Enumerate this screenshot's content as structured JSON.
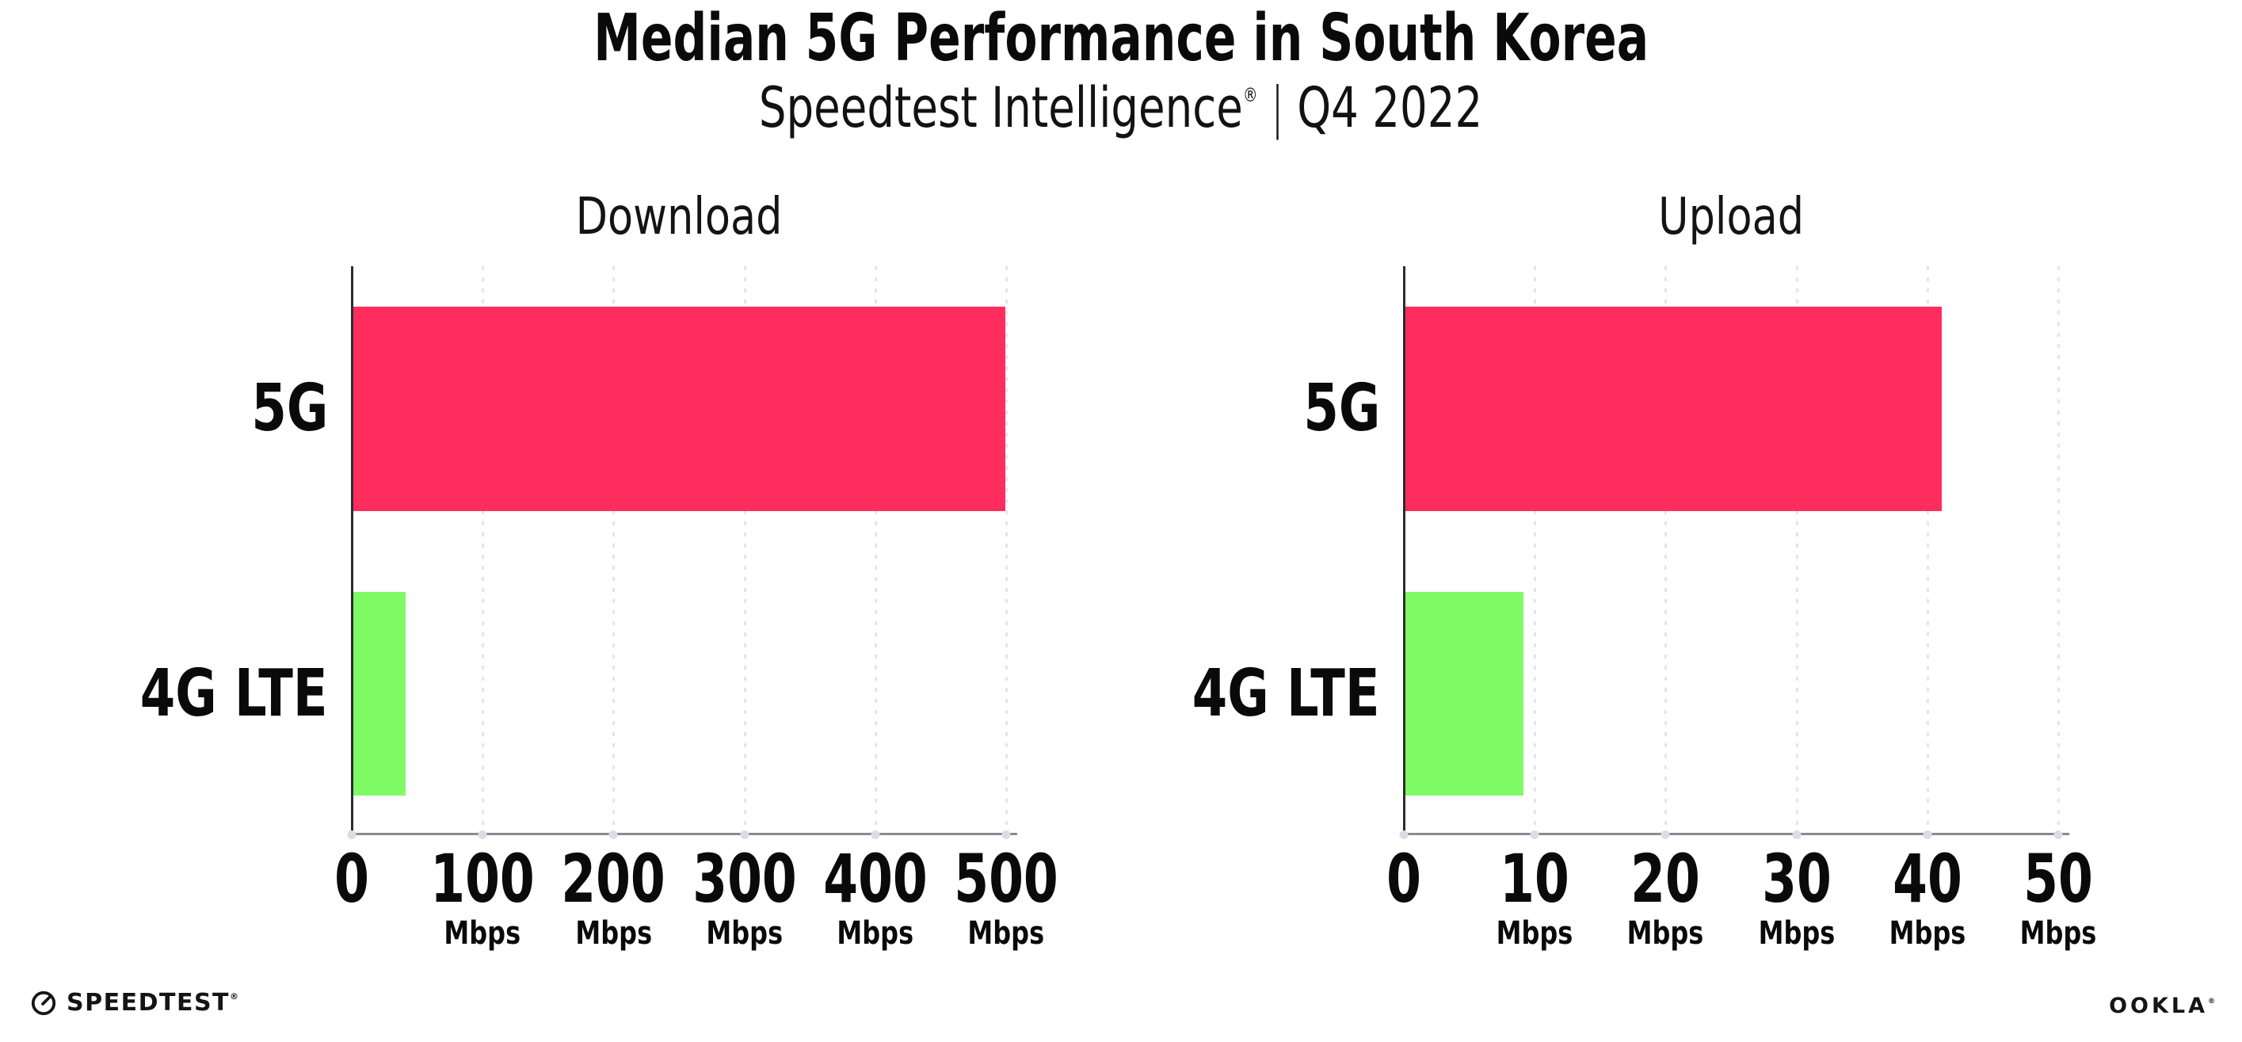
{
  "header": {
    "title": "Median 5G Performance in South Korea",
    "subtitle_product": "Speedtest Intelligence",
    "subtitle_registered": "®",
    "subtitle_separator": "|",
    "subtitle_period": "Q4 2022"
  },
  "footer": {
    "speedtest_label": "SPEEDTEST",
    "speedtest_mark": "®",
    "speedtest_icon": "speedtest-gauge-icon",
    "ookla_label": "OOKLA",
    "ookla_mark": "®"
  },
  "colors": {
    "bar_5g": "#FF2D5E",
    "bar_4g_lte": "#80FB66",
    "spine": "#2C2C31",
    "x_axis_line": "#8A8A90",
    "gridline_dots": "#E4E4EE",
    "tick_dots": "#DCDCE6",
    "text": "#0A0A0B"
  },
  "chart_data": [
    {
      "type": "bar",
      "orientation": "horizontal",
      "title": "Download",
      "categories": [
        "5G",
        "4G LTE"
      ],
      "values": [
        498,
        40
      ],
      "unit": "Mbps",
      "xlim": [
        0,
        500
      ],
      "x_ticks": [
        0,
        100,
        200,
        300,
        400,
        500
      ],
      "tick_unit_label": "Mbps",
      "bar_colors": [
        "#FF2D5E",
        "#80FB66"
      ],
      "grid": "vertical-dotted",
      "legend": "none"
    },
    {
      "type": "bar",
      "orientation": "horizontal",
      "title": "Upload",
      "categories": [
        "5G",
        "4G LTE"
      ],
      "values": [
        41,
        9
      ],
      "unit": "Mbps",
      "xlim": [
        0,
        50
      ],
      "x_ticks": [
        0,
        10,
        20,
        30,
        40,
        50
      ],
      "tick_unit_label": "Mbps",
      "bar_colors": [
        "#FF2D5E",
        "#80FB66"
      ],
      "grid": "vertical-dotted",
      "legend": "none"
    }
  ]
}
